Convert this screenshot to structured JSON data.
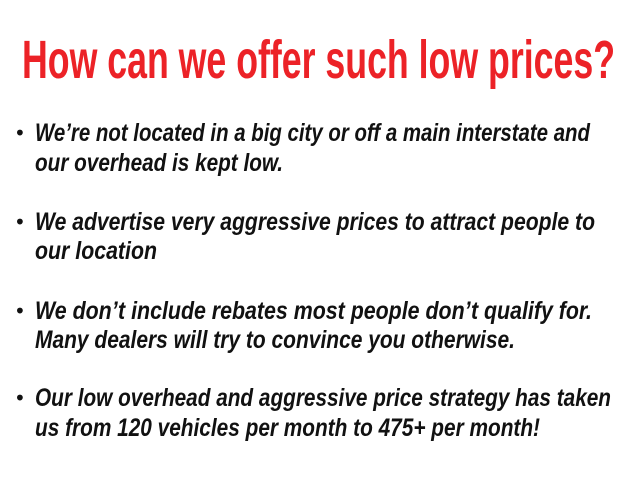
{
  "title": "How can we offer such low prices?",
  "title_color": "#ec2227",
  "bullet_symbol": "•",
  "bullets": [
    {
      "lines": [
        "We’re not located in a big city or off a main interstate and",
        "our overhead is kept low."
      ]
    },
    {
      "lines": [
        "We advertise very aggressive prices to attract people to",
        "our location"
      ]
    },
    {
      "lines": [
        "We don’t include rebates most people don’t qualify for.",
        "Many dealers will try to convince you otherwise."
      ]
    },
    {
      "lines": [
        "Our low overhead and aggressive price strategy has taken",
        "us from 120 vehicles per month to 475+ per month!"
      ]
    }
  ]
}
